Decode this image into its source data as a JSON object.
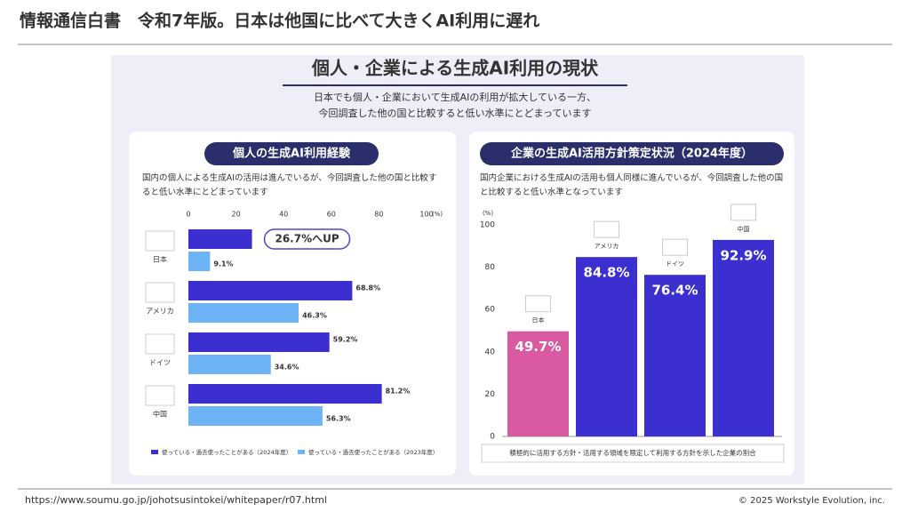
{
  "header": {
    "title": "情報通信白書　令和7年版。日本は他国に比べて大きくAI利用に遅れ"
  },
  "infographic": {
    "title": "個人・企業による生成AI利用の現状",
    "subtitle": [
      "日本でも個人・企業において生成AIの利用が拡大している一方、",
      "今回調査した他の国と比較すると低い水準にとどまっています"
    ]
  },
  "chart_data": [
    {
      "type": "bar",
      "orientation": "horizontal",
      "title": "個人の生成AI利用経験",
      "description": "国内の個人による生成AIの活用は進んでいるが、今回調査した他の国と比較すると低い水準にとどまっています",
      "categories": [
        "日本",
        "アメリカ",
        "ドイツ",
        "中国"
      ],
      "series": [
        {
          "name": "使っている・過去使ったことがある（2024年度）",
          "color": "#3b2fd0",
          "values": [
            26.7,
            68.8,
            59.2,
            81.2
          ],
          "value_labels": [
            "26.7%へUP",
            "68.8%",
            "59.2%",
            "81.2%"
          ]
        },
        {
          "name": "使っている・過去使ったことがある（2023年度）",
          "color": "#6cb4f5",
          "values": [
            9.1,
            46.3,
            34.6,
            56.3
          ],
          "value_labels": [
            "9.1%",
            "46.3%",
            "34.6%",
            "56.3%"
          ]
        }
      ],
      "xlim": [
        0,
        100
      ],
      "xticks": [
        0,
        20,
        40,
        60,
        80,
        100
      ],
      "xlabel": "(%)",
      "grid": false
    },
    {
      "type": "bar",
      "orientation": "vertical",
      "title": "企業の生成AI活用方針策定状況（2024年度）",
      "description": "国内企業における生成AIの活用も個人同様に進んでいるが、今回調査した他の国と比較すると低い水準となっています",
      "categories": [
        "日本",
        "アメリカ",
        "ドイツ",
        "中国"
      ],
      "values": [
        49.7,
        84.8,
        76.4,
        92.9
      ],
      "value_labels": [
        "49.7%",
        "84.8%",
        "76.4%",
        "92.9%"
      ],
      "colors": [
        "#d95aa0",
        "#3b2fd0",
        "#3b2fd0",
        "#3b2fd0"
      ],
      "ylim": [
        0,
        100
      ],
      "yticks": [
        0,
        20,
        40,
        60,
        80,
        100
      ],
      "ylabel": "(%)",
      "caption": "積極的に活用する方針・活用する領域を限定して利用する方針を示した企業の割合",
      "grid": false
    }
  ],
  "footer": {
    "url": "https://www.soumu.go.jp/johotsusintokei/whitepaper/r07.html",
    "copyright": "© 2025 Workstyle Evolution, inc."
  }
}
